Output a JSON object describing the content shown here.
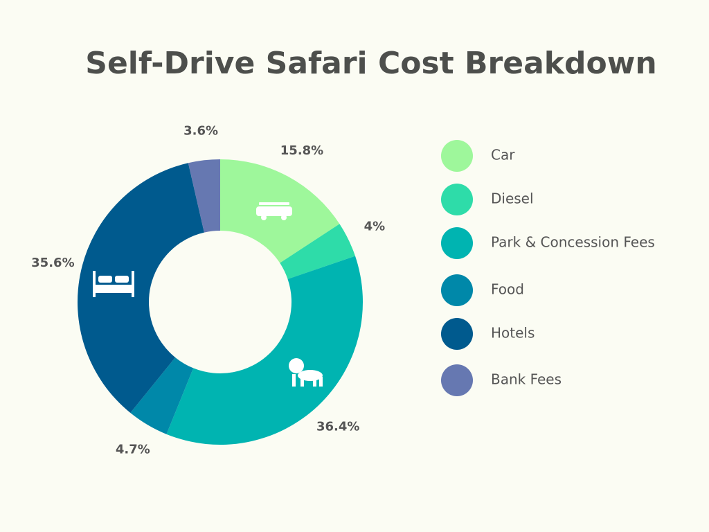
{
  "chart_data": {
    "type": "donut",
    "title": "Self-Drive Safari Cost Breakdown",
    "categories": [
      "Car",
      "Diesel",
      "Park & Concession Fees",
      "Food",
      "Hotels",
      "Bank Fees"
    ],
    "values": [
      15.8,
      4,
      36.4,
      4.7,
      35.6,
      3.6
    ],
    "value_labels": [
      "15.8%",
      "4%",
      "36.4%",
      "4.7%",
      "35.6%",
      "3.6%"
    ],
    "colors": [
      "#9ef79b",
      "#2edca9",
      "#00b4b1",
      "#0088a9",
      "#005a8e",
      "#6678b1"
    ]
  }
}
